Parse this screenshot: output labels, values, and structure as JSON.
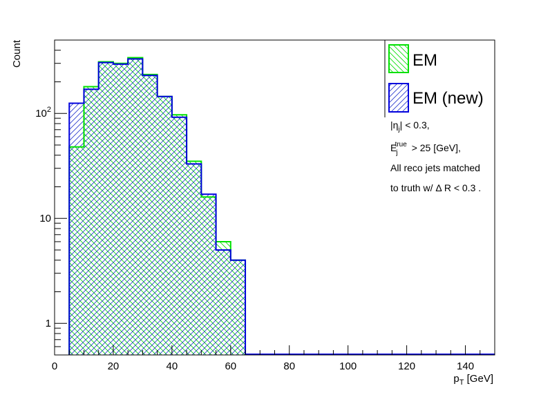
{
  "chart_data": {
    "type": "histogram",
    "xlabel": "p_T [GeV]",
    "ylabel": "Count",
    "xlim": [
      0,
      150
    ],
    "ylim": [
      0.5,
      500
    ],
    "yscale": "log",
    "grid": false,
    "legend_position": "top-right",
    "bin_edges": [
      5,
      10,
      15,
      20,
      25,
      30,
      35,
      40,
      45,
      50,
      55,
      60,
      65
    ],
    "x_ticks": [
      0,
      20,
      40,
      60,
      80,
      100,
      120,
      140
    ],
    "x_tick_labels": [
      "0",
      "20",
      "40",
      "60",
      "80",
      "100",
      "120",
      "140"
    ],
    "y_ticks": [
      1,
      10,
      100
    ],
    "y_tick_labels": [
      "1",
      "10",
      "10^2"
    ],
    "series": [
      {
        "name": "EM",
        "color": "#00e000",
        "hatch": "cross",
        "values": [
          48,
          180,
          310,
          300,
          340,
          235,
          145,
          97,
          35,
          16,
          6,
          4
        ]
      },
      {
        "name": "EM (new)",
        "color": "#0000dd",
        "hatch": "diagonal",
        "values": [
          125,
          170,
          305,
          295,
          330,
          230,
          145,
          92,
          33,
          17,
          5,
          4
        ]
      }
    ],
    "annotations": [
      "|η_j| < 0.3,",
      "E_j^true > 25 [GeV],",
      "All reco jets matched",
      "to truth w/ Δ R < 0.3 ."
    ]
  }
}
